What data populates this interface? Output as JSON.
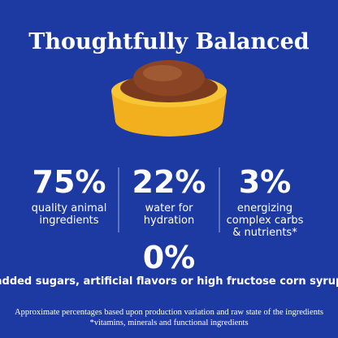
{
  "header": {
    "title": "Thoughtfully Balanced"
  },
  "stats": [
    {
      "value": "75%",
      "lines": [
        "quality animal",
        "ingredients"
      ]
    },
    {
      "value": "22%",
      "lines": [
        "water for",
        "hydration"
      ]
    },
    {
      "value": "3%",
      "lines": [
        "energizing",
        "complex carbs",
        "& nutrients*"
      ]
    }
  ],
  "highlight": {
    "value": "0%",
    "label": "added sugars, artificial flavors or high fructose corn syrup"
  },
  "footnotes": [
    "Approximate percentages based upon production variation and raw state of the ingredients",
    "*vitamins, minerals and functional ingredients"
  ]
}
